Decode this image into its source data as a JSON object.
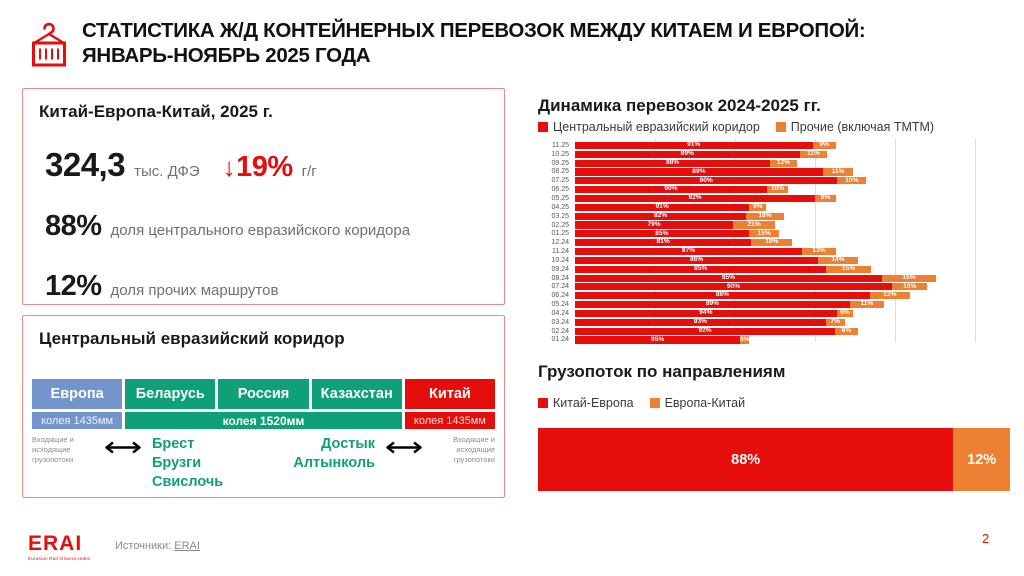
{
  "colors": {
    "red": "#e60d0d",
    "orange": "#ee8033",
    "green": "#0fa077",
    "blue": "#7395cb",
    "dark": "#1d1d1d",
    "gray": "#707070",
    "card_border": "#ea8a8a",
    "grid_line": "#dcdcdc"
  },
  "header": {
    "title_line1": "СТАТИСТИКА Ж/Д КОНТЕЙНЕРНЫХ ПЕРЕВОЗОК МЕЖДУ КИТАЕМ И ЕВРОПОЙ:",
    "title_line2": "ЯНВАРЬ-НОЯБРЬ 2025 ГОДА"
  },
  "summary_card": {
    "title": "Китай-Европа-Китай, 2025 г.",
    "volume": "324,3",
    "volume_unit": "тыс. ДФЭ",
    "yoy_arrow": "↓",
    "yoy_value": "19%",
    "yoy_suffix": "г/г",
    "share_main_value": "88%",
    "share_main_label": "доля центрального евразийского коридора",
    "share_other_value": "12%",
    "share_other_label": "доля прочих маршрутов"
  },
  "corridor_card": {
    "title": "Центральный евразийский коридор",
    "countries": [
      {
        "name": "Европа",
        "color_key": "blue"
      },
      {
        "name": "Беларусь",
        "color_key": "green"
      },
      {
        "name": "Россия",
        "color_key": "green"
      },
      {
        "name": "Казахстан",
        "color_key": "green"
      },
      {
        "name": "Китай",
        "color_key": "red"
      }
    ],
    "gauges": [
      {
        "label": "колея 1435мм",
        "color_key": "blue",
        "span": 1,
        "bold": false
      },
      {
        "label": "колея 1520мм",
        "color_key": "green",
        "span": 3,
        "bold": true
      },
      {
        "label": "колея 1435мм",
        "color_key": "red",
        "span": 1,
        "bold": false
      }
    ],
    "left_flow_label": "Входящие и исходящие грузопотоки",
    "left_crossings": [
      "Брест",
      "Брузги",
      "Свислочь"
    ],
    "right_crossings": [
      "Достык",
      "Алтынколь"
    ],
    "right_flow_label": "Входящие и исходящие грузопотоки"
  },
  "chart_data": [
    {
      "type": "bar",
      "orientation": "horizontal",
      "stacked": true,
      "title": "Динамика перевозок 2024-2025 гг.",
      "legend_position": "top",
      "grid": "vertical",
      "categories": [
        "11.25",
        "10.25",
        "09.25",
        "08.25",
        "07.25",
        "06.25",
        "05.25",
        "04.25",
        "03.25",
        "02.25",
        "01.25",
        "12.24",
        "11.24",
        "10.24",
        "09.24",
        "08.24",
        "07.24",
        "06.24",
        "05.24",
        "04.24",
        "03.24",
        "02.24",
        "01.24"
      ],
      "series": [
        {
          "name": "Центральный евразийский коридор",
          "color_key": "red",
          "share_pct": [
            91,
            89,
            88,
            89,
            90,
            90,
            92,
            91,
            82,
            79,
            85,
            81,
            87,
            86,
            85,
            85,
            90,
            88,
            89,
            94,
            93,
            92,
            95
          ]
        },
        {
          "name": "Прочие (включая ТМТМ)",
          "color_key": "orange",
          "share_pct": [
            9,
            11,
            12,
            11,
            10,
            10,
            8,
            9,
            18,
            21,
            15,
            19,
            13,
            14,
            15,
            15,
            10,
            12,
            11,
            6,
            7,
            8,
            5
          ]
        }
      ],
      "bar_total_pct_of_plot": [
        60,
        58,
        51,
        64,
        67,
        49,
        60,
        44,
        48,
        46,
        47,
        50,
        60,
        65,
        68,
        83,
        81,
        77,
        71,
        64,
        62,
        65,
        40
      ]
    },
    {
      "type": "bar",
      "orientation": "horizontal",
      "stacked": true,
      "title": "Грузопоток по направлениям",
      "legend_position": "top",
      "series": [
        {
          "name": "Китай-Европа",
          "color_key": "red",
          "values_pct": [
            88
          ]
        },
        {
          "name": "Европа-Китай",
          "color_key": "orange",
          "values_pct": [
            12
          ]
        }
      ]
    }
  ],
  "footer": {
    "logo_text": "ERAI",
    "logo_subtext": "Eurasian Rail Alliance Index",
    "sources_label": "Источники:",
    "sources_link_text": "ERAI",
    "page_number": "2"
  }
}
